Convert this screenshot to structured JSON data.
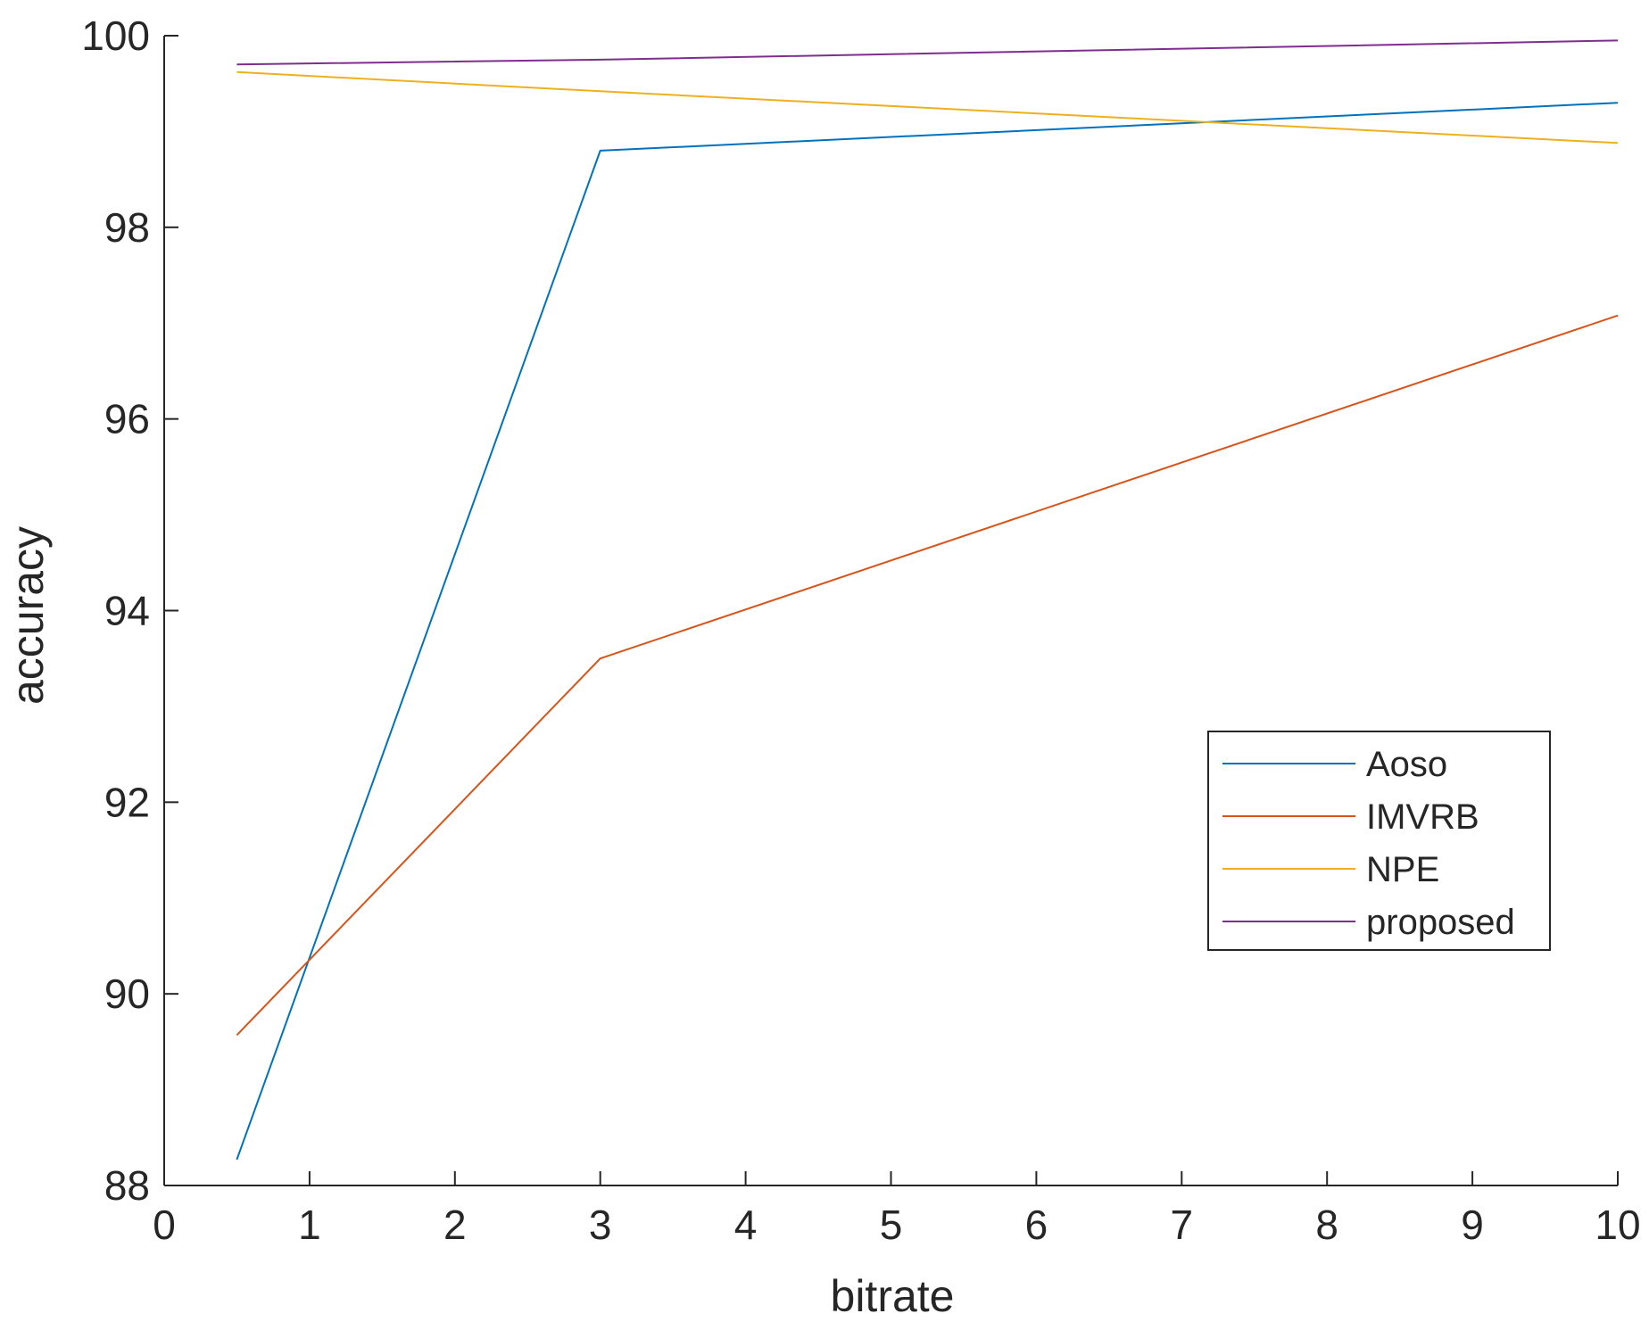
{
  "chart_data": {
    "type": "line",
    "xlabel": "bitrate",
    "ylabel": "accuracy",
    "xlim": [
      0,
      10
    ],
    "ylim": [
      88,
      100
    ],
    "xticks": [
      0,
      1,
      2,
      3,
      4,
      5,
      6,
      7,
      8,
      9,
      10
    ],
    "yticks": [
      88,
      90,
      92,
      94,
      96,
      98,
      100
    ],
    "grid": false,
    "legend_position": "lower-right",
    "series": [
      {
        "name": "Aoso",
        "color": "#0072BD",
        "x": [
          0.5,
          3,
          10
        ],
        "y": [
          88.27,
          98.8,
          99.3
        ]
      },
      {
        "name": "IMVRB",
        "color": "#D95319",
        "x": [
          0.5,
          3,
          10
        ],
        "y": [
          89.57,
          93.5,
          97.08
        ]
      },
      {
        "name": "NPE",
        "color": "#EDB120",
        "x": [
          0.5,
          3,
          10
        ],
        "y": [
          99.62,
          99.42,
          98.88
        ]
      },
      {
        "name": "proposed",
        "color": "#7E2F8E",
        "x": [
          0.5,
          3,
          10
        ],
        "y": [
          99.7,
          99.75,
          99.95
        ]
      }
    ]
  }
}
